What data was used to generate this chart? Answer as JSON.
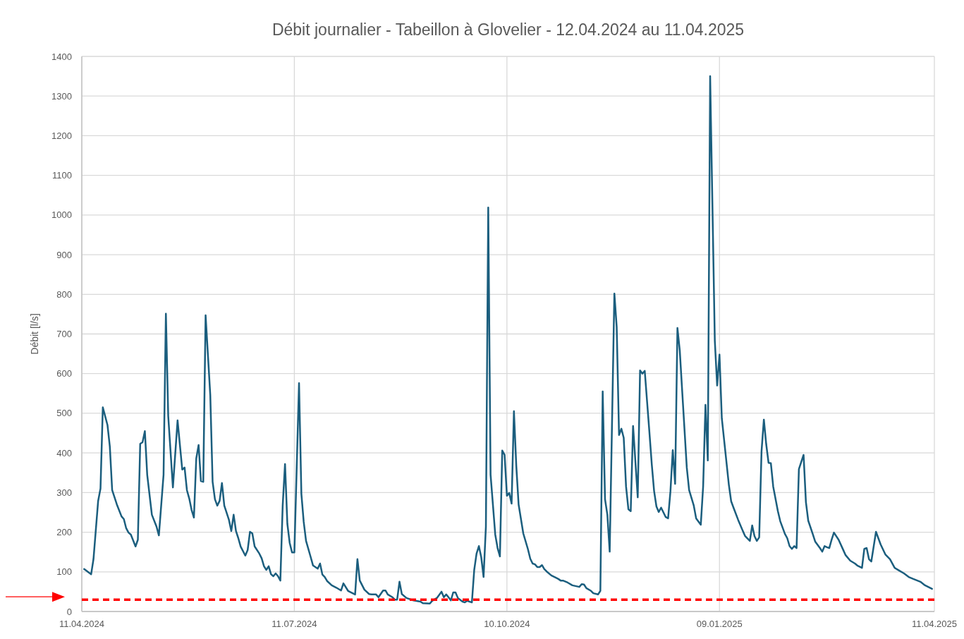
{
  "chart_data": {
    "type": "line",
    "title": "Débit journalier - Tabeillon à Glovelier - 12.04.2024 au 11.04.2025",
    "ylabel": "Débit [l/s]",
    "xlim": [
      "2024-04-11",
      "2025-04-11"
    ],
    "xticks": [
      {
        "value": "2024-04-11",
        "label": "11.04.2024"
      },
      {
        "value": "2024-07-11",
        "label": "11.07.2024"
      },
      {
        "value": "2024-10-10",
        "label": "10.10.2024"
      },
      {
        "value": "2025-01-09",
        "label": "09.01.2025"
      },
      {
        "value": "2025-04-11",
        "label": "11.04.2025"
      }
    ],
    "ylim": [
      0,
      1400
    ],
    "yticks": [
      0,
      100,
      200,
      300,
      400,
      500,
      600,
      700,
      800,
      900,
      1000,
      1100,
      1200,
      1300,
      1400
    ],
    "grid": true,
    "marker": "none",
    "line_style": "solid",
    "ref_lines": [
      {
        "axis": "y",
        "value": 30,
        "color": "#ff0000",
        "line_style": "dashed"
      }
    ],
    "series": [
      {
        "color": "#1b5e7e",
        "x": [
          "2024-04-12",
          "2024-04-15",
          "2024-04-16",
          "2024-04-18",
          "2024-04-19",
          "2024-04-20",
          "2024-04-22",
          "2024-04-23",
          "2024-04-24",
          "2024-04-26",
          "2024-04-28",
          "2024-04-29",
          "2024-04-30",
          "2024-05-01",
          "2024-05-02",
          "2024-05-04",
          "2024-05-05",
          "2024-05-06",
          "2024-05-07",
          "2024-05-08",
          "2024-05-09",
          "2024-05-10",
          "2024-05-11",
          "2024-05-13",
          "2024-05-14",
          "2024-05-16",
          "2024-05-17",
          "2024-05-18",
          "2024-05-20",
          "2024-05-22",
          "2024-05-24",
          "2024-05-25",
          "2024-05-26",
          "2024-05-27",
          "2024-05-28",
          "2024-05-29",
          "2024-05-30",
          "2024-05-31",
          "2024-06-01",
          "2024-06-02",
          "2024-06-03",
          "2024-06-05",
          "2024-06-06",
          "2024-06-07",
          "2024-06-08",
          "2024-06-09",
          "2024-06-10",
          "2024-06-11",
          "2024-06-13",
          "2024-06-14",
          "2024-06-15",
          "2024-06-16",
          "2024-06-17",
          "2024-06-18",
          "2024-06-20",
          "2024-06-21",
          "2024-06-22",
          "2024-06-23",
          "2024-06-24",
          "2024-06-26",
          "2024-06-27",
          "2024-06-28",
          "2024-06-29",
          "2024-06-30",
          "2024-07-01",
          "2024-07-02",
          "2024-07-03",
          "2024-07-04",
          "2024-07-05",
          "2024-07-06",
          "2024-07-07",
          "2024-07-08",
          "2024-07-09",
          "2024-07-10",
          "2024-07-11",
          "2024-07-13",
          "2024-07-14",
          "2024-07-15",
          "2024-07-16",
          "2024-07-18",
          "2024-07-19",
          "2024-07-21",
          "2024-07-22",
          "2024-07-23",
          "2024-07-24",
          "2024-07-25",
          "2024-07-27",
          "2024-07-29",
          "2024-07-31",
          "2024-08-01",
          "2024-08-03",
          "2024-08-06",
          "2024-08-07",
          "2024-08-08",
          "2024-08-10",
          "2024-08-12",
          "2024-08-13",
          "2024-08-15",
          "2024-08-16",
          "2024-08-18",
          "2024-08-19",
          "2024-08-20",
          "2024-08-22",
          "2024-08-23",
          "2024-08-24",
          "2024-08-25",
          "2024-08-26",
          "2024-08-28",
          "2024-08-31",
          "2024-09-03",
          "2024-09-04",
          "2024-09-07",
          "2024-09-08",
          "2024-09-10",
          "2024-09-12",
          "2024-09-13",
          "2024-09-14",
          "2024-09-15",
          "2024-09-16",
          "2024-09-17",
          "2024-09-18",
          "2024-09-19",
          "2024-09-21",
          "2024-09-22",
          "2024-09-23",
          "2024-09-24",
          "2024-09-25",
          "2024-09-26",
          "2024-09-27",
          "2024-09-28",
          "2024-09-29",
          "2024-09-30",
          "2024-10-01",
          "2024-10-02",
          "2024-10-03",
          "2024-10-05",
          "2024-10-06",
          "2024-10-07",
          "2024-10-08",
          "2024-10-09",
          "2024-10-10",
          "2024-10-11",
          "2024-10-12",
          "2024-10-13",
          "2024-10-14",
          "2024-10-15",
          "2024-10-17",
          "2024-10-19",
          "2024-10-20",
          "2024-10-21",
          "2024-10-22",
          "2024-10-23",
          "2024-10-24",
          "2024-10-25",
          "2024-10-26",
          "2024-10-27",
          "2024-10-29",
          "2024-10-31",
          "2024-11-01",
          "2024-11-02",
          "2024-11-03",
          "2024-11-05",
          "2024-11-07",
          "2024-11-10",
          "2024-11-11",
          "2024-11-12",
          "2024-11-13",
          "2024-11-15",
          "2024-11-16",
          "2024-11-18",
          "2024-11-19",
          "2024-11-20",
          "2024-11-21",
          "2024-11-22",
          "2024-11-23",
          "2024-11-25",
          "2024-11-26",
          "2024-11-27",
          "2024-11-28",
          "2024-11-29",
          "2024-11-30",
          "2024-12-01",
          "2024-12-02",
          "2024-12-03",
          "2024-12-05",
          "2024-12-06",
          "2024-12-07",
          "2024-12-08",
          "2024-12-10",
          "2024-12-11",
          "2024-12-12",
          "2024-12-13",
          "2024-12-14",
          "2024-12-15",
          "2024-12-17",
          "2024-12-18",
          "2024-12-19",
          "2024-12-20",
          "2024-12-21",
          "2024-12-22",
          "2024-12-23",
          "2024-12-24",
          "2024-12-26",
          "2024-12-27",
          "2024-12-29",
          "2024-12-30",
          "2025-01-01",
          "2025-01-02",
          "2025-01-03",
          "2025-01-04",
          "2025-01-05",
          "2025-01-07",
          "2025-01-08",
          "2025-01-09",
          "2025-01-10",
          "2025-01-13",
          "2025-01-14",
          "2025-01-15",
          "2025-01-17",
          "2025-01-19",
          "2025-01-20",
          "2025-01-22",
          "2025-01-23",
          "2025-01-24",
          "2025-01-25",
          "2025-01-26",
          "2025-01-27",
          "2025-01-28",
          "2025-01-29",
          "2025-01-30",
          "2025-01-31",
          "2025-02-01",
          "2025-02-03",
          "2025-02-04",
          "2025-02-06",
          "2025-02-07",
          "2025-02-08",
          "2025-02-09",
          "2025-02-10",
          "2025-02-11",
          "2025-02-12",
          "2025-02-14",
          "2025-02-15",
          "2025-02-16",
          "2025-02-18",
          "2025-02-19",
          "2025-02-21",
          "2025-02-22",
          "2025-02-23",
          "2025-02-24",
          "2025-02-25",
          "2025-02-26",
          "2025-02-27",
          "2025-03-01",
          "2025-03-03",
          "2025-03-04",
          "2025-03-06",
          "2025-03-08",
          "2025-03-09",
          "2025-03-11",
          "2025-03-12",
          "2025-03-13",
          "2025-03-14",
          "2025-03-15",
          "2025-03-17",
          "2025-03-19",
          "2025-03-21",
          "2025-03-23",
          "2025-03-25",
          "2025-03-27",
          "2025-03-29",
          "2025-03-31",
          "2025-04-02",
          "2025-04-05",
          "2025-04-07",
          "2025-04-10"
        ],
        "values": [
          107,
          94,
          132,
          279,
          310,
          515,
          470,
          416,
          306,
          270,
          240,
          233,
          210,
          199,
          194,
          164,
          181,
          423,
          427,
          455,
          345,
          294,
          244,
          214,
          192,
          345,
          751,
          493,
          313,
          482,
          358,
          363,
          306,
          285,
          256,
          237,
          386,
          420,
          329,
          327,
          747,
          546,
          327,
          283,
          267,
          279,
          324,
          267,
          231,
          203,
          244,
          203,
          185,
          164,
          141,
          155,
          201,
          197,
          164,
          146,
          134,
          114,
          105,
          114,
          94,
          89,
          96,
          89,
          78,
          267,
          372,
          221,
          173,
          149,
          149,
          576,
          297,
          226,
          178,
          137,
          116,
          108,
          121,
          93,
          87,
          77,
          66,
          60,
          53,
          71,
          52,
          43,
          132,
          78,
          55,
          44,
          43,
          43,
          36,
          53,
          53,
          43,
          36,
          30,
          30,
          75,
          44,
          34,
          28,
          25,
          21,
          20,
          27,
          34,
          50,
          36,
          43,
          36,
          28,
          48,
          48,
          34,
          25,
          23,
          27,
          25,
          23,
          105,
          146,
          165,
          137,
          87,
          214,
          1019,
          345,
          194,
          160,
          139,
          406,
          395,
          292,
          299,
          272,
          505,
          368,
          270,
          197,
          157,
          133,
          121,
          119,
          112,
          112,
          117,
          107,
          101,
          91,
          85,
          82,
          78,
          78,
          73,
          66,
          62,
          69,
          68,
          59,
          52,
          46,
          43,
          52,
          555,
          283,
          244,
          151,
          802,
          717,
          445,
          461,
          438,
          315,
          258,
          253,
          468,
          288,
          608,
          600,
          607,
          452,
          372,
          304,
          265,
          251,
          262,
          238,
          235,
          303,
          407,
          322,
          715,
          658,
          559,
          363,
          306,
          267,
          235,
          219,
          315,
          521,
          381,
          1350,
          683,
          570,
          648,
          487,
          320,
          278,
          262,
          231,
          203,
          190,
          178,
          217,
          190,
          178,
          187,
          404,
          484,
          422,
          375,
          374,
          315,
          253,
          228,
          196,
          185,
          165,
          158,
          165,
          160,
          359,
          395,
          276,
          229,
          194,
          176,
          160,
          151,
          165,
          162,
          160,
          181,
          199,
          181,
          155,
          142,
          128,
          121,
          116,
          110,
          158,
          160,
          132,
          126,
          201,
          169,
          144,
          132,
          110,
          103,
          96,
          87,
          82,
          75,
          66,
          57
        ]
      }
    ]
  }
}
